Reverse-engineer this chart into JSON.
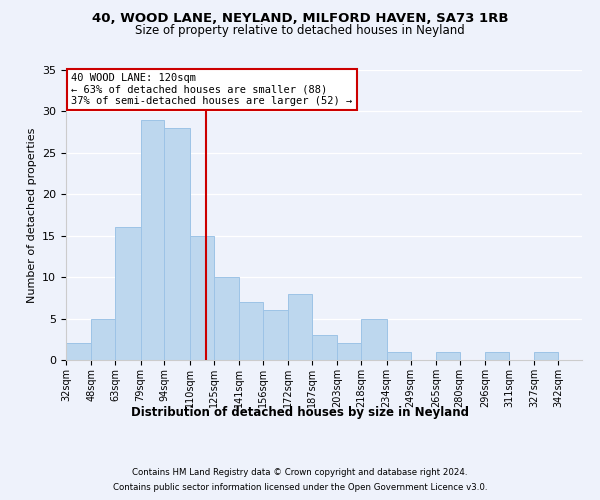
{
  "title1": "40, WOOD LANE, NEYLAND, MILFORD HAVEN, SA73 1RB",
  "title2": "Size of property relative to detached houses in Neyland",
  "xlabel": "Distribution of detached houses by size in Neyland",
  "ylabel": "Number of detached properties",
  "bins": [
    32,
    48,
    63,
    79,
    94,
    110,
    125,
    141,
    156,
    172,
    187,
    203,
    218,
    234,
    249,
    265,
    280,
    296,
    311,
    327,
    342
  ],
  "bin_labels": [
    "32sqm",
    "48sqm",
    "63sqm",
    "79sqm",
    "94sqm",
    "110sqm",
    "125sqm",
    "141sqm",
    "156sqm",
    "172sqm",
    "187sqm",
    "203sqm",
    "218sqm",
    "234sqm",
    "249sqm",
    "265sqm",
    "280sqm",
    "296sqm",
    "311sqm",
    "327sqm",
    "342sqm"
  ],
  "counts": [
    2,
    5,
    16,
    29,
    28,
    15,
    10,
    7,
    6,
    8,
    3,
    2,
    5,
    1,
    0,
    1,
    0,
    1,
    0,
    1
  ],
  "bar_color": "#bdd7ee",
  "bar_edge_color": "#9dc3e6",
  "vline_x": 120,
  "vline_color": "#cc0000",
  "annotation_title": "40 WOOD LANE: 120sqm",
  "annotation_line1": "← 63% of detached houses are smaller (88)",
  "annotation_line2": "37% of semi-detached houses are larger (52) →",
  "annotation_box_color": "white",
  "annotation_box_edge": "#cc0000",
  "ylim": [
    0,
    35
  ],
  "yticks": [
    0,
    5,
    10,
    15,
    20,
    25,
    30,
    35
  ],
  "footer1": "Contains HM Land Registry data © Crown copyright and database right 2024.",
  "footer2": "Contains public sector information licensed under the Open Government Licence v3.0.",
  "bg_color": "#eef2fb"
}
